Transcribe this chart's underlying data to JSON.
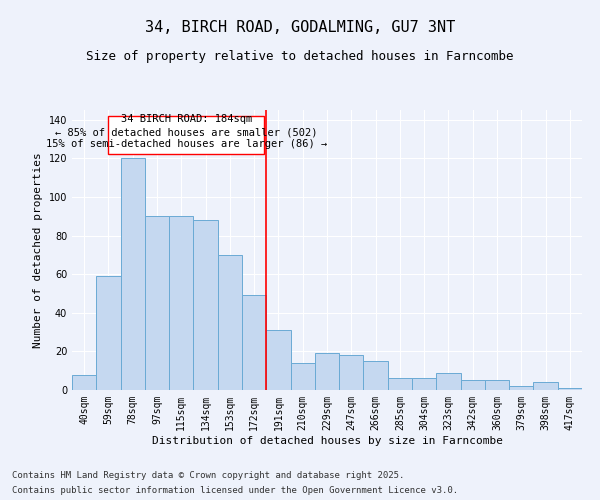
{
  "title": "34, BIRCH ROAD, GODALMING, GU7 3NT",
  "subtitle": "Size of property relative to detached houses in Farncombe",
  "xlabel": "Distribution of detached houses by size in Farncombe",
  "ylabel": "Number of detached properties",
  "categories": [
    "40sqm",
    "59sqm",
    "78sqm",
    "97sqm",
    "115sqm",
    "134sqm",
    "153sqm",
    "172sqm",
    "191sqm",
    "210sqm",
    "229sqm",
    "247sqm",
    "266sqm",
    "285sqm",
    "304sqm",
    "323sqm",
    "342sqm",
    "360sqm",
    "379sqm",
    "398sqm",
    "417sqm"
  ],
  "values": [
    8,
    59,
    120,
    90,
    90,
    88,
    70,
    49,
    31,
    14,
    19,
    18,
    15,
    6,
    6,
    9,
    5,
    5,
    2,
    4,
    1
  ],
  "bar_color": "#c5d8f0",
  "bar_edge_color": "#6aaad4",
  "background_color": "#eef2fb",
  "grid_color": "#ffffff",
  "annotation_line1": "34 BIRCH ROAD: 184sqm",
  "annotation_line2": "← 85% of detached houses are smaller (502)",
  "annotation_line3": "15% of semi-detached houses are larger (86) →",
  "footer_line1": "Contains HM Land Registry data © Crown copyright and database right 2025.",
  "footer_line2": "Contains public sector information licensed under the Open Government Licence v3.0.",
  "ylim": [
    0,
    145
  ],
  "yticks": [
    0,
    20,
    40,
    60,
    80,
    100,
    120,
    140
  ],
  "title_fontsize": 11,
  "subtitle_fontsize": 9,
  "axis_label_fontsize": 8,
  "tick_fontsize": 7,
  "annotation_fontsize": 7.5,
  "footer_fontsize": 6.5
}
